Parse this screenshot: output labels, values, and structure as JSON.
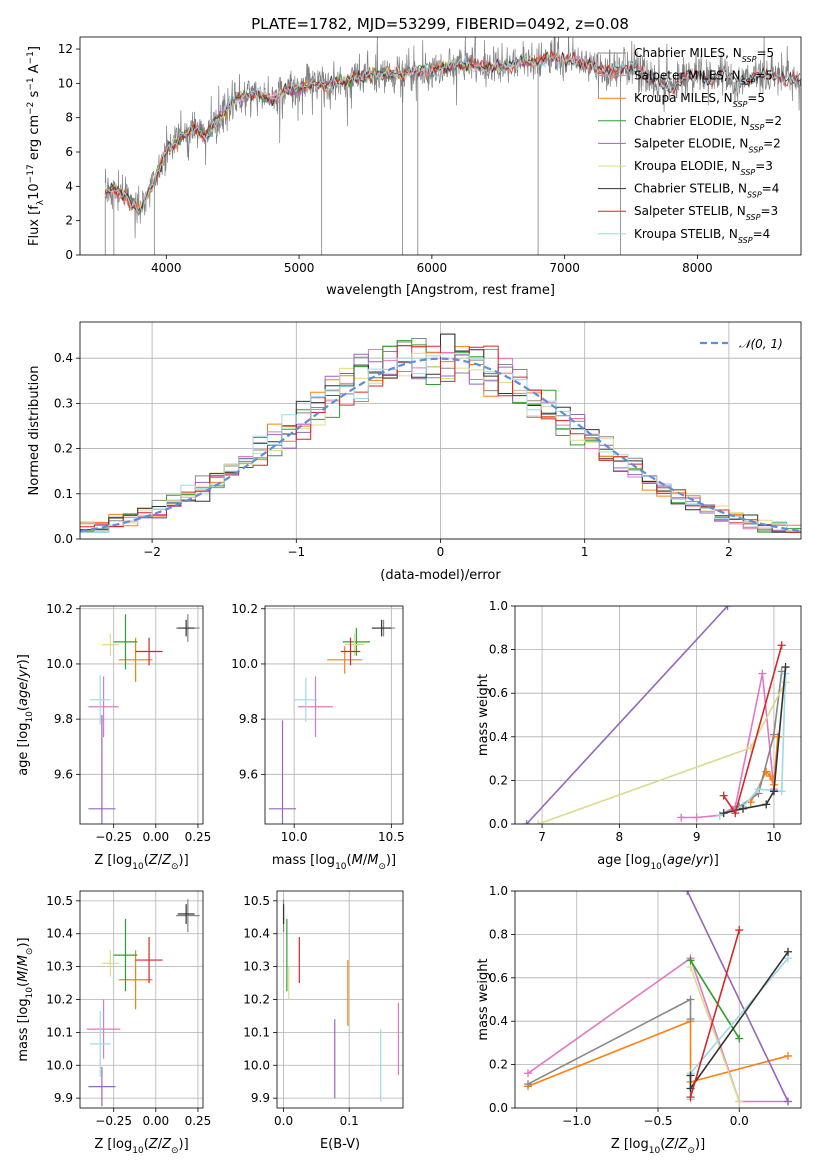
{
  "figure": {
    "title": "PLATE=1782, MJD=53299, FIBERID=0492, z=0.08"
  },
  "colors": {
    "Chabrier MILES": "#888888",
    "Salpeter MILES": "#e377c2",
    "Kroupa MILES": "#ff7f0e",
    "Chabrier ELODIE": "#2ca02c",
    "Salpeter ELODIE": "#9467bd",
    "Kroupa ELODIE": "#dbdb8d",
    "Chabrier STELIB": "#333333",
    "Salpeter STELIB": "#d62728",
    "Kroupa STELIB": "#9edae5",
    "data": "#7f7f7f",
    "gauss": "#5b8fd9"
  },
  "chart_data": [
    {
      "id": "spectrum",
      "type": "line",
      "xlabel": "wavelength [Angstrom, rest frame]",
      "ylabel": "Flux [f_λ 10^-17 erg cm^-2 s^-1 A^-1]",
      "xlim": [
        3350,
        8780
      ],
      "ylim": [
        0,
        12.7
      ],
      "xticks": [
        4000,
        5000,
        6000,
        7000,
        8000
      ],
      "yticks": [
        0,
        2,
        4,
        6,
        8,
        10,
        12
      ],
      "grid": false,
      "legend_position": "top-right",
      "legend": [
        "Chabrier MILES, N_SSP=5",
        "Salpeter MILES, N_SSP=5",
        "Kroupa MILES, N_SSP=5",
        "Chabrier ELODIE, N_SSP=2",
        "Salpeter ELODIE, N_SSP=2",
        "Kroupa ELODIE, N_SSP=3",
        "Chabrier STELIB, N_SSP=4",
        "Salpeter STELIB, N_SSP=3",
        "Kroupa STELIB, N_SSP=4"
      ],
      "continuum": {
        "x": [
          3540,
          3600,
          3700,
          3800,
          3900,
          4000,
          4100,
          4200,
          4300,
          4400,
          4500,
          4600,
          4700,
          4800,
          4900,
          5000,
          5100,
          5200,
          5300,
          5400,
          5500,
          5600,
          5700,
          5800,
          5900,
          6000,
          6100,
          6200,
          6300,
          6400,
          6500,
          6600,
          6700,
          6800,
          6900,
          7000,
          7100,
          7200,
          7300,
          7400,
          7500,
          7600,
          7700,
          7800,
          7900,
          8000,
          8100,
          8200,
          8300,
          8400,
          8500,
          8600,
          8700,
          8780
        ],
        "y": [
          3.6,
          3.8,
          3.3,
          2.6,
          4.2,
          6.0,
          6.8,
          7.4,
          6.9,
          8.0,
          8.9,
          9.3,
          9.4,
          9.0,
          9.6,
          9.7,
          10.0,
          9.8,
          10.1,
          10.3,
          10.4,
          10.5,
          10.6,
          10.5,
          10.8,
          10.7,
          11.0,
          11.1,
          11.0,
          10.9,
          11.0,
          11.1,
          11.3,
          11.2,
          11.5,
          11.4,
          11.3,
          11.1,
          10.6,
          10.8,
          10.9,
          10.6,
          10.1,
          9.6,
          10.3,
          10.6,
          10.1,
          10.7,
          10.0,
          10.3,
          10.5,
          10.4,
          10.2,
          10.3
        ]
      }
    },
    {
      "id": "residuals",
      "type": "line",
      "xlabel": "(data-model)/error",
      "ylabel": "Normed distribution",
      "xlim": [
        -2.5,
        2.5
      ],
      "ylim": [
        0,
        0.48
      ],
      "xticks": [
        -2,
        -1,
        0,
        1,
        2
      ],
      "yticks": [
        0.0,
        0.1,
        0.2,
        0.3,
        0.4
      ],
      "grid": true,
      "legend_position": "top-right",
      "legend": [
        "𝒩(0, 1)"
      ],
      "bins": [
        -2.5,
        2.5,
        50
      ]
    },
    {
      "id": "age-vs-Z",
      "type": "scatter",
      "xlabel": "Z [log10(Z/Z⊙)]",
      "ylabel": "age  [log10(age/yr)]",
      "xlim": [
        -0.45,
        0.28
      ],
      "ylim": [
        9.42,
        10.21
      ],
      "xticks": [
        -0.25,
        0.0,
        0.25
      ],
      "xticklabels": [
        "−0.25",
        "0.00",
        "0.25"
      ],
      "yticks": [
        9.6,
        9.8,
        10.0,
        10.2
      ],
      "grid": true,
      "points": [
        {
          "model": "Chabrier MILES",
          "x": 0.19,
          "y": 10.13,
          "xerr": 0.07,
          "yerr": 0.05
        },
        {
          "model": "Salpeter MILES",
          "x": -0.31,
          "y": 9.845,
          "xerr": 0.09,
          "yerr": 0.11
        },
        {
          "model": "Kroupa MILES",
          "x": -0.12,
          "y": 10.015,
          "xerr": 0.1,
          "yerr": 0.08
        },
        {
          "model": "Chabrier ELODIE",
          "x": -0.18,
          "y": 10.08,
          "xerr": 0.07,
          "yerr": 0.1
        },
        {
          "model": "Salpeter ELODIE",
          "x": -0.32,
          "y": 9.475,
          "xerr": 0.08,
          "yerr": 0.34
        },
        {
          "model": "Kroupa ELODIE",
          "x": -0.27,
          "y": 10.07,
          "xerr": 0.05,
          "yerr": 0.04
        },
        {
          "model": "Chabrier STELIB",
          "x": 0.18,
          "y": 10.13,
          "xerr": 0.05,
          "yerr": 0.03
        },
        {
          "model": "Salpeter STELIB",
          "x": -0.04,
          "y": 10.045,
          "xerr": 0.08,
          "yerr": 0.05
        },
        {
          "model": "Kroupa STELIB",
          "x": -0.33,
          "y": 9.87,
          "xerr": 0.06,
          "yerr": 0.09
        }
      ]
    },
    {
      "id": "age-vs-mass",
      "type": "scatter",
      "xlabel": "mass [log10(M/M⊙)]",
      "ylabel": "",
      "xlim": [
        9.85,
        10.56
      ],
      "ylim": [
        9.42,
        10.21
      ],
      "xticks": [
        10.0,
        10.5
      ],
      "xticklabels": [
        "10.0",
        "10.5"
      ],
      "yticks": [
        9.6,
        9.8,
        10.0,
        10.2
      ],
      "grid": true,
      "points": [
        {
          "model": "Chabrier MILES",
          "x": 10.46,
          "y": 10.13,
          "xerr": 0.06,
          "yerr": 0.03
        },
        {
          "model": "Salpeter MILES",
          "x": 10.11,
          "y": 9.845,
          "xerr": 0.09,
          "yerr": 0.11
        },
        {
          "model": "Kroupa MILES",
          "x": 10.26,
          "y": 10.015,
          "xerr": 0.09,
          "yerr": 0.05
        },
        {
          "model": "Chabrier ELODIE",
          "x": 10.32,
          "y": 10.08,
          "xerr": 0.07,
          "yerr": 0.05
        },
        {
          "model": "Salpeter ELODIE",
          "x": 9.94,
          "y": 9.475,
          "xerr": 0.07,
          "yerr": 0.32
        },
        {
          "model": "Kroupa ELODIE",
          "x": 10.31,
          "y": 10.07,
          "xerr": 0.05,
          "yerr": 0.04
        },
        {
          "model": "Chabrier STELIB",
          "x": 10.45,
          "y": 10.13,
          "xerr": 0.05,
          "yerr": 0.03
        },
        {
          "model": "Salpeter STELIB",
          "x": 10.29,
          "y": 10.045,
          "xerr": 0.05,
          "yerr": 0.05
        },
        {
          "model": "Kroupa STELIB",
          "x": 10.06,
          "y": 9.87,
          "xerr": 0.06,
          "yerr": 0.08
        }
      ]
    },
    {
      "id": "weight-vs-age",
      "type": "line",
      "xlabel": "age  [log10(age/yr)]",
      "ylabel": "mass weight",
      "xlim": [
        6.65,
        10.35
      ],
      "ylim": [
        0,
        1.0
      ],
      "xticks": [
        7,
        8,
        9,
        10
      ],
      "yticks": [
        0.0,
        0.2,
        0.4,
        0.6,
        0.8,
        1.0
      ],
      "grid": true,
      "series": [
        {
          "model": "Salpeter MILES",
          "x": [
            8.8,
            9.0,
            9.3,
            9.5,
            9.85,
            10.0
          ],
          "y": [
            0.03,
            0.03,
            0.04,
            0.08,
            0.69,
            0.16
          ]
        },
        {
          "model": "Kroupa MILES",
          "x": [
            9.7,
            9.9,
            9.95,
            10.0,
            10.05
          ],
          "y": [
            0.1,
            0.24,
            0.22,
            0.18,
            0.4
          ]
        },
        {
          "model": "Chabrier MILES",
          "x": [
            9.3,
            9.55,
            9.8,
            10.0,
            10.1
          ],
          "y": [
            0.04,
            0.08,
            0.14,
            0.41,
            0.7
          ]
        },
        {
          "model": "Salpeter ELODIE",
          "x": [
            6.8,
            9.4
          ],
          "y": [
            0.0,
            1.0
          ]
        },
        {
          "model": "Kroupa ELODIE",
          "x": [
            6.95,
            9.7,
            10.15
          ],
          "y": [
            0.0,
            0.35,
            0.65
          ]
        },
        {
          "model": "Kroupa STELIB",
          "x": [
            9.3,
            9.6,
            9.8,
            10.1,
            10.15
          ],
          "y": [
            0.04,
            0.08,
            0.16,
            0.15,
            0.69
          ]
        },
        {
          "model": "Chabrier STELIB",
          "x": [
            9.35,
            9.6,
            9.9,
            10.0,
            10.15
          ],
          "y": [
            0.05,
            0.07,
            0.09,
            0.15,
            0.72
          ]
        },
        {
          "model": "Salpeter STELIB",
          "x": [
            9.35,
            9.5,
            10.1
          ],
          "y": [
            0.13,
            0.05,
            0.82
          ]
        }
      ]
    },
    {
      "id": "mass-vs-Z",
      "type": "scatter",
      "xlabel": "Z [log10(Z/Z⊙)]",
      "ylabel": "mass [log10(M/M⊙)]",
      "xlim": [
        -0.45,
        0.28
      ],
      "ylim": [
        9.87,
        10.53
      ],
      "xticks": [
        -0.25,
        0.0,
        0.25
      ],
      "xticklabels": [
        "−0.25",
        "0.00",
        "0.25"
      ],
      "yticks": [
        9.9,
        10.0,
        10.1,
        10.2,
        10.3,
        10.4,
        10.5
      ],
      "grid": true,
      "points": [
        {
          "model": "Chabrier MILES",
          "x": 0.19,
          "y": 10.455,
          "xerr": 0.07,
          "yerr": 0.05
        },
        {
          "model": "Salpeter MILES",
          "x": -0.31,
          "y": 10.11,
          "xerr": 0.1,
          "yerr": 0.09
        },
        {
          "model": "Kroupa MILES",
          "x": -0.12,
          "y": 10.26,
          "xerr": 0.1,
          "yerr": 0.09
        },
        {
          "model": "Chabrier ELODIE",
          "x": -0.18,
          "y": 10.335,
          "xerr": 0.07,
          "yerr": 0.11
        },
        {
          "model": "Salpeter ELODIE",
          "x": -0.32,
          "y": 9.935,
          "xerr": 0.08,
          "yerr": 0.06
        },
        {
          "model": "Kroupa ELODIE",
          "x": -0.27,
          "y": 10.31,
          "xerr": 0.05,
          "yerr": 0.04
        },
        {
          "model": "Chabrier STELIB",
          "x": 0.18,
          "y": 10.46,
          "xerr": 0.05,
          "yerr": 0.03
        },
        {
          "model": "Salpeter STELIB",
          "x": -0.04,
          "y": 10.32,
          "xerr": 0.08,
          "yerr": 0.07
        },
        {
          "model": "Kroupa STELIB",
          "x": -0.33,
          "y": 10.065,
          "xerr": 0.06,
          "yerr": 0.1
        }
      ]
    },
    {
      "id": "mass-vs-ebv",
      "type": "scatter",
      "xlabel": "E(B-V)",
      "ylabel": "",
      "xlim": [
        -0.01,
        0.182
      ],
      "ylim": [
        9.87,
        10.53
      ],
      "xticks": [
        0.0,
        0.1
      ],
      "xticklabels": [
        "0.0",
        "0.1"
      ],
      "yticks": [
        9.9,
        10.0,
        10.1,
        10.2,
        10.3,
        10.4,
        10.5
      ],
      "grid": true,
      "points": [
        {
          "model": "Chabrier MILES",
          "x": 0.0,
          "y": 10.455,
          "yerr": 0.05
        },
        {
          "model": "Salpeter MILES",
          "x": 0.175,
          "y": 10.08,
          "yerr": 0.11
        },
        {
          "model": "Kroupa MILES",
          "x": 0.098,
          "y": 10.22,
          "yerr": 0.1
        },
        {
          "model": "Chabrier ELODIE",
          "x": 0.005,
          "y": 10.335,
          "yerr": 0.11
        },
        {
          "model": "Salpeter ELODIE",
          "x": 0.078,
          "y": 10.02,
          "yerr": 0.12
        },
        {
          "model": "Kroupa ELODIE",
          "x": 0.008,
          "y": 10.25,
          "yerr": 0.05
        },
        {
          "model": "Chabrier STELIB",
          "x": 0.0,
          "y": 10.46,
          "yerr": 0.03
        },
        {
          "model": "Salpeter STELIB",
          "x": 0.024,
          "y": 10.32,
          "yerr": 0.07
        },
        {
          "model": "Kroupa STELIB",
          "x": 0.148,
          "y": 10.0,
          "yerr": 0.11
        }
      ]
    },
    {
      "id": "weight-vs-Z",
      "type": "line",
      "xlabel": "Z [log10(Z/Z⊙)]",
      "ylabel": "mass weight",
      "xlim": [
        -1.38,
        0.38
      ],
      "ylim": [
        0,
        1.0
      ],
      "xticks": [
        -1.0,
        -0.5,
        0.0
      ],
      "xticklabels": [
        "−1.0",
        "−0.5",
        "0.0"
      ],
      "yticks": [
        0.0,
        0.2,
        0.4,
        0.6,
        0.8,
        1.0
      ],
      "grid": true,
      "series": [
        {
          "model": "Salpeter MILES",
          "x": [
            -1.3,
            -0.3,
            0.0,
            0.3
          ],
          "y": [
            0.16,
            0.69,
            0.03,
            0.03
          ]
        },
        {
          "model": "Kroupa MILES",
          "x": [
            -1.3,
            -0.3,
            -0.3,
            0.3
          ],
          "y": [
            0.1,
            0.4,
            0.12,
            0.24
          ]
        },
        {
          "model": "Chabrier MILES",
          "x": [
            -1.3,
            -0.3,
            -0.3
          ],
          "y": [
            0.11,
            0.5,
            0.41
          ]
        },
        {
          "model": "Salpeter ELODIE",
          "x": [
            -0.32,
            0.3
          ],
          "y": [
            1.0,
            0.03
          ]
        },
        {
          "model": "Kroupa ELODIE",
          "x": [
            -0.3,
            0.0
          ],
          "y": [
            0.65,
            0.03
          ]
        },
        {
          "model": "Chabrier ELODIE",
          "x": [
            -0.3,
            0.0
          ],
          "y": [
            0.68,
            0.32
          ]
        },
        {
          "model": "Kroupa STELIB",
          "x": [
            -0.3,
            -0.3,
            0.3
          ],
          "y": [
            0.04,
            0.16,
            0.69
          ]
        },
        {
          "model": "Chabrier STELIB",
          "x": [
            -0.3,
            -0.3,
            0.3
          ],
          "y": [
            0.15,
            0.09,
            0.72
          ]
        },
        {
          "model": "Salpeter STELIB",
          "x": [
            -0.3,
            0.0
          ],
          "y": [
            0.05,
            0.82
          ]
        }
      ]
    }
  ]
}
